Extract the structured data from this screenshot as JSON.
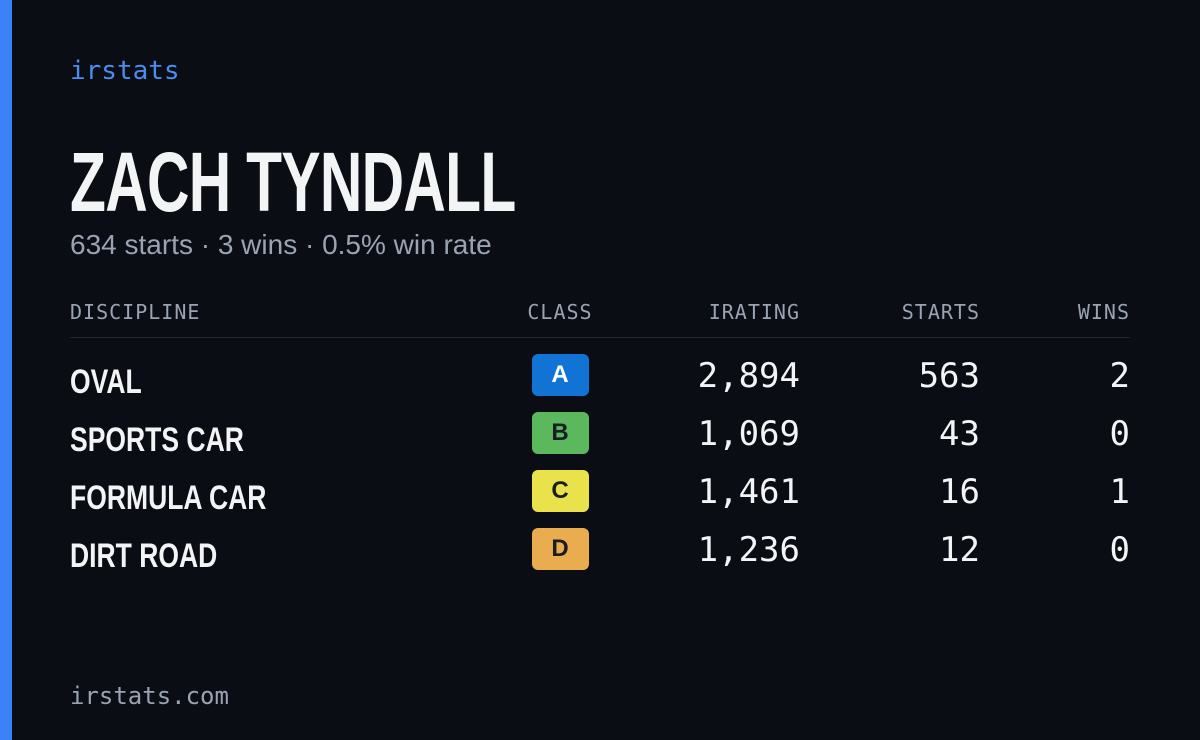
{
  "brand": "irstats",
  "name": "ZACH TYNDALL",
  "summary": "634 starts · 3 wins · 0.5% win rate",
  "table": {
    "headers": [
      "DISCIPLINE",
      "CLASS",
      "IRATING",
      "STARTS",
      "WINS"
    ],
    "rows": [
      [
        "OVAL",
        "A",
        "2,894",
        "563",
        "2"
      ],
      [
        "SPORTS CAR",
        "B",
        "1,069",
        "43",
        "0"
      ],
      [
        "FORMULA CAR",
        "C",
        "1,461",
        "16",
        "1"
      ],
      [
        "DIRT ROAD",
        "D",
        "1,236",
        "12",
        "0"
      ]
    ],
    "badge_colors": [
      "#1173d4",
      "#5cb85c",
      "#e9e24a",
      "#e9ad50"
    ]
  },
  "footer": "irstats.com"
}
